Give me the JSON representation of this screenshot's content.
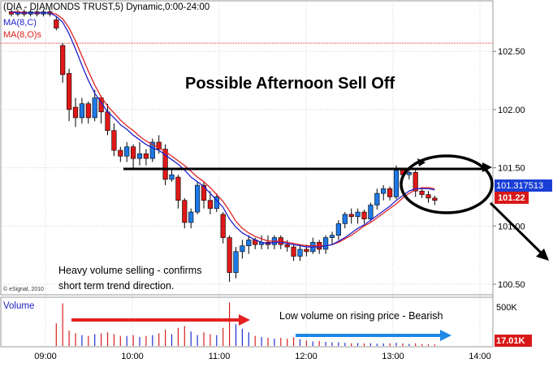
{
  "header": {
    "title": "(DIA - DIAMONDS TRUST,5) Dynamic,0:00-24:00",
    "ma1_label": "MA(8,C)",
    "ma2_label": "MA(8,O)s"
  },
  "colors": {
    "up": "#1f78e6",
    "down": "#e01818",
    "ma_close": "#2020d0",
    "ma_open": "#e02020",
    "annotation_line": "#000000",
    "volume_arrow_red": "#e52020",
    "volume_arrow_blue": "#1e88e5",
    "price_tag_blue": "#1a3fd6",
    "price_tag_red": "#d81818"
  },
  "annotations": {
    "title": "Possible Afternoon Sell Off",
    "heavy_volume_line1": "Heavy volume selling - confirms",
    "heavy_volume_line2": "short term trend direction.",
    "low_volume": "Low volume on rising price - Bearish",
    "copyright": "© eSignal, 2010"
  },
  "price_tags": {
    "ma_value": "101.317513",
    "last_price": "101.22"
  },
  "volume_panel": {
    "title": "Volume",
    "max_label": "500K",
    "last_volume": "17.01K"
  },
  "chart_data": {
    "type": "candlestick",
    "x_ticks": [
      "09:00",
      "10:00",
      "11:00",
      "12:00",
      "13:00",
      "14:00"
    ],
    "y_ticks": [
      "102.50",
      "102.00",
      "101.50",
      "101.00",
      "100.50"
    ],
    "ylim": [
      100.43,
      102.92
    ],
    "reference_levels": {
      "red_dashed": 102.57,
      "black_support": 101.49
    },
    "session_start_bar": 7,
    "candles": [
      {
        "o": 102.84,
        "h": 102.86,
        "l": 102.8,
        "c": 102.82
      },
      {
        "o": 102.82,
        "h": 102.86,
        "l": 102.8,
        "c": 102.84
      },
      {
        "o": 102.84,
        "h": 102.86,
        "l": 102.8,
        "c": 102.82
      },
      {
        "o": 102.82,
        "h": 102.86,
        "l": 102.8,
        "c": 102.84
      },
      {
        "o": 102.84,
        "h": 102.86,
        "l": 102.8,
        "c": 102.82
      },
      {
        "o": 102.82,
        "h": 102.86,
        "l": 102.8,
        "c": 102.84
      },
      {
        "o": 102.84,
        "h": 102.86,
        "l": 102.8,
        "c": 102.82
      },
      {
        "o": 102.77,
        "h": 102.8,
        "l": 102.68,
        "c": 102.7
      },
      {
        "o": 102.55,
        "h": 102.57,
        "l": 102.23,
        "c": 102.3
      },
      {
        "o": 102.31,
        "h": 102.35,
        "l": 101.9,
        "c": 102.0
      },
      {
        "o": 102.02,
        "h": 102.1,
        "l": 101.85,
        "c": 101.93
      },
      {
        "o": 101.93,
        "h": 102.1,
        "l": 101.88,
        "c": 102.05
      },
      {
        "o": 102.05,
        "h": 102.07,
        "l": 101.88,
        "c": 101.93
      },
      {
        "o": 101.93,
        "h": 102.17,
        "l": 101.9,
        "c": 102.1
      },
      {
        "o": 102.1,
        "h": 102.12,
        "l": 101.88,
        "c": 101.98
      },
      {
        "o": 101.98,
        "h": 102.05,
        "l": 101.78,
        "c": 101.82
      },
      {
        "o": 101.82,
        "h": 101.88,
        "l": 101.6,
        "c": 101.65
      },
      {
        "o": 101.65,
        "h": 101.68,
        "l": 101.55,
        "c": 101.6
      },
      {
        "o": 101.6,
        "h": 101.72,
        "l": 101.55,
        "c": 101.68
      },
      {
        "o": 101.68,
        "h": 101.7,
        "l": 101.5,
        "c": 101.58
      },
      {
        "o": 101.58,
        "h": 101.72,
        "l": 101.52,
        "c": 101.62
      },
      {
        "o": 101.62,
        "h": 101.66,
        "l": 101.52,
        "c": 101.58
      },
      {
        "o": 101.58,
        "h": 101.75,
        "l": 101.55,
        "c": 101.72
      },
      {
        "o": 101.72,
        "h": 101.78,
        "l": 101.62,
        "c": 101.66
      },
      {
        "o": 101.66,
        "h": 101.7,
        "l": 101.35,
        "c": 101.4
      },
      {
        "o": 101.4,
        "h": 101.48,
        "l": 101.38,
        "c": 101.44
      },
      {
        "o": 101.42,
        "h": 101.44,
        "l": 101.15,
        "c": 101.22
      },
      {
        "o": 101.22,
        "h": 101.24,
        "l": 100.98,
        "c": 101.03
      },
      {
        "o": 101.03,
        "h": 101.15,
        "l": 100.98,
        "c": 101.12
      },
      {
        "o": 101.12,
        "h": 101.38,
        "l": 101.1,
        "c": 101.35
      },
      {
        "o": 101.35,
        "h": 101.38,
        "l": 101.15,
        "c": 101.22
      },
      {
        "o": 101.22,
        "h": 101.3,
        "l": 101.1,
        "c": 101.15
      },
      {
        "o": 101.15,
        "h": 101.28,
        "l": 101.12,
        "c": 101.25
      },
      {
        "o": 101.1,
        "h": 101.12,
        "l": 100.85,
        "c": 100.9
      },
      {
        "o": 100.9,
        "h": 100.92,
        "l": 100.52,
        "c": 100.6
      },
      {
        "o": 100.6,
        "h": 100.82,
        "l": 100.55,
        "c": 100.78
      },
      {
        "o": 100.78,
        "h": 100.88,
        "l": 100.72,
        "c": 100.83
      },
      {
        "o": 100.83,
        "h": 100.92,
        "l": 100.76,
        "c": 100.88
      },
      {
        "o": 100.88,
        "h": 100.9,
        "l": 100.8,
        "c": 100.84
      },
      {
        "o": 100.84,
        "h": 100.92,
        "l": 100.8,
        "c": 100.86
      },
      {
        "o": 100.86,
        "h": 100.92,
        "l": 100.8,
        "c": 100.84
      },
      {
        "o": 100.84,
        "h": 100.92,
        "l": 100.8,
        "c": 100.9
      },
      {
        "o": 100.9,
        "h": 100.92,
        "l": 100.8,
        "c": 100.84
      },
      {
        "o": 100.84,
        "h": 100.88,
        "l": 100.78,
        "c": 100.82
      },
      {
        "o": 100.82,
        "h": 100.84,
        "l": 100.7,
        "c": 100.74
      },
      {
        "o": 100.74,
        "h": 100.84,
        "l": 100.7,
        "c": 100.8
      },
      {
        "o": 100.8,
        "h": 100.84,
        "l": 100.74,
        "c": 100.78
      },
      {
        "o": 100.78,
        "h": 100.9,
        "l": 100.76,
        "c": 100.86
      },
      {
        "o": 100.86,
        "h": 100.88,
        "l": 100.76,
        "c": 100.8
      },
      {
        "o": 100.8,
        "h": 100.92,
        "l": 100.76,
        "c": 100.9
      },
      {
        "o": 100.9,
        "h": 100.95,
        "l": 100.84,
        "c": 100.92
      },
      {
        "o": 100.92,
        "h": 101.05,
        "l": 100.88,
        "c": 101.02
      },
      {
        "o": 101.02,
        "h": 101.12,
        "l": 100.98,
        "c": 101.1
      },
      {
        "o": 101.1,
        "h": 101.15,
        "l": 101.02,
        "c": 101.08
      },
      {
        "o": 101.08,
        "h": 101.15,
        "l": 101.02,
        "c": 101.12
      },
      {
        "o": 101.12,
        "h": 101.14,
        "l": 101.02,
        "c": 101.06
      },
      {
        "o": 101.06,
        "h": 101.2,
        "l": 101.04,
        "c": 101.18
      },
      {
        "o": 101.18,
        "h": 101.32,
        "l": 101.14,
        "c": 101.28
      },
      {
        "o": 101.28,
        "h": 101.35,
        "l": 101.22,
        "c": 101.32
      },
      {
        "o": 101.32,
        "h": 101.34,
        "l": 101.22,
        "c": 101.25
      },
      {
        "o": 101.25,
        "h": 101.52,
        "l": 101.23,
        "c": 101.48
      },
      {
        "o": 101.48,
        "h": 101.5,
        "l": 101.4,
        "c": 101.44
      },
      {
        "o": 101.44,
        "h": 101.5,
        "l": 101.4,
        "c": 101.46
      },
      {
        "o": 101.46,
        "h": 101.48,
        "l": 101.25,
        "c": 101.3
      },
      {
        "o": 101.3,
        "h": 101.32,
        "l": 101.24,
        "c": 101.27
      },
      {
        "o": 101.27,
        "h": 101.3,
        "l": 101.2,
        "c": 101.24
      },
      {
        "o": 101.24,
        "h": 101.26,
        "l": 101.18,
        "c": 101.22
      }
    ],
    "ma_close": [
      102.84,
      102.83,
      102.83,
      102.83,
      102.83,
      102.83,
      102.83,
      102.8,
      102.75,
      102.65,
      102.52,
      102.38,
      102.25,
      102.14,
      102.06,
      101.98,
      101.93,
      101.87,
      101.83,
      101.78,
      101.74,
      101.7,
      101.67,
      101.65,
      101.61,
      101.57,
      101.53,
      101.48,
      101.42,
      101.38,
      101.34,
      101.28,
      101.22,
      101.16,
      101.06,
      100.99,
      100.94,
      100.91,
      100.88,
      100.86,
      100.85,
      100.86,
      100.86,
      100.85,
      100.84,
      100.83,
      100.82,
      100.82,
      100.82,
      100.83,
      100.84,
      100.87,
      100.9,
      100.94,
      100.98,
      101.01,
      101.05,
      101.09,
      101.13,
      101.17,
      101.22,
      101.26,
      101.3,
      101.32,
      101.32,
      101.32,
      101.31
    ],
    "ma_open": [
      102.84,
      102.84,
      102.83,
      102.83,
      102.83,
      102.83,
      102.83,
      102.82,
      102.78,
      102.7,
      102.59,
      102.46,
      102.33,
      102.21,
      102.11,
      102.03,
      101.97,
      101.91,
      101.86,
      101.82,
      101.77,
      101.73,
      101.7,
      101.67,
      101.64,
      101.6,
      101.56,
      101.52,
      101.47,
      101.42,
      101.38,
      101.33,
      101.27,
      101.21,
      101.13,
      101.04,
      100.98,
      100.94,
      100.91,
      100.89,
      100.87,
      100.87,
      100.87,
      100.86,
      100.85,
      100.84,
      100.83,
      100.83,
      100.83,
      100.83,
      100.84,
      100.86,
      100.89,
      100.92,
      100.96,
      101.0,
      101.03,
      101.07,
      101.11,
      101.15,
      101.19,
      101.24,
      101.28,
      101.31,
      101.33,
      101.33,
      101.32
    ],
    "volume": [
      0,
      0,
      0,
      0,
      0,
      0,
      0,
      250000,
      470000,
      170000,
      140000,
      120000,
      110000,
      130000,
      140000,
      150000,
      130000,
      110000,
      110000,
      120000,
      100000,
      110000,
      120000,
      140000,
      180000,
      130000,
      200000,
      220000,
      160000,
      120000,
      150000,
      130000,
      120000,
      200000,
      480000,
      240000,
      190000,
      150000,
      110000,
      100000,
      90000,
      80000,
      90000,
      80000,
      95000,
      75000,
      60000,
      50000,
      55000,
      45000,
      40000,
      40000,
      35000,
      30000,
      32000,
      28000,
      30000,
      25000,
      28000,
      30000,
      35000,
      28000,
      22000,
      30000,
      20000,
      18000,
      17010
    ],
    "volume_ymax": 520000
  }
}
